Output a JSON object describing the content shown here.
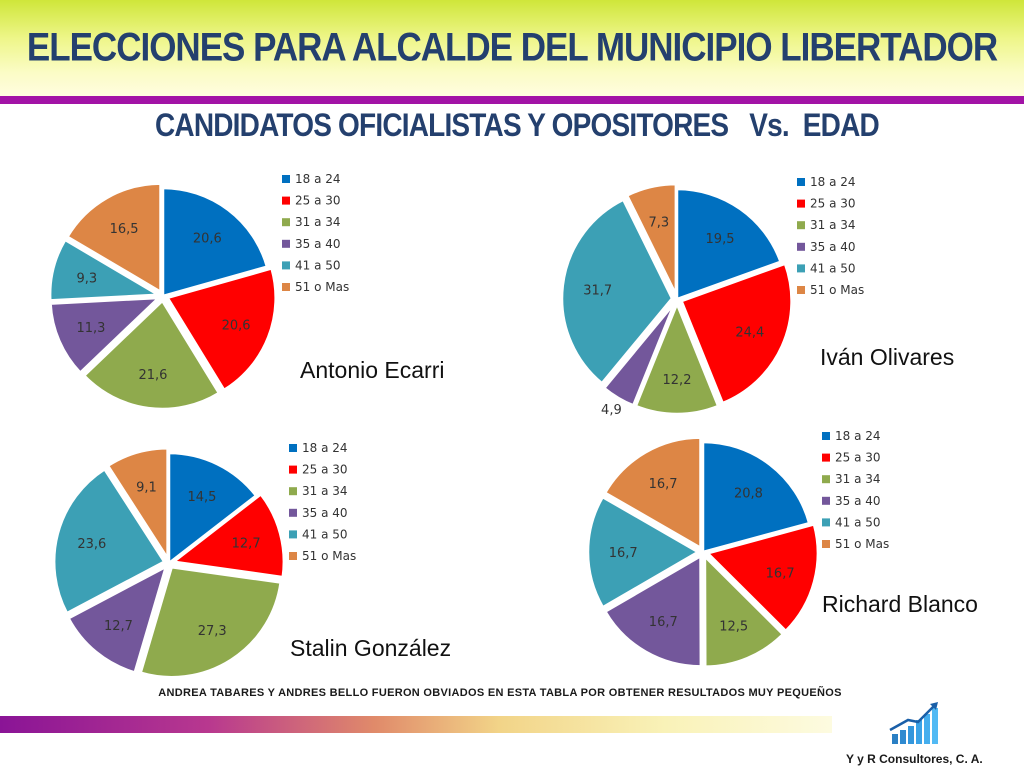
{
  "title": "ELECCIONES PARA ALCALDE DEL MUNICIPIO LIBERTADOR",
  "subtitle": "CANDIDATOS OFICIALISTAS Y OPOSITORES   Vs.  EDAD",
  "footnote": "ANDREA TABARES Y ANDRES BELLO FUERON OBVIADOS EN ESTA TABLA POR OBTENER RESULTADOS MUY PEQUEÑOS",
  "company": "Y y R Consultores, C. A.",
  "colors": [
    "#0070c0",
    "#ff0000",
    "#8faa4d",
    "#73579b",
    "#3ca0b5",
    "#dd8645"
  ],
  "chart_data": [
    {
      "type": "pie",
      "title": "Antonio Ecarri",
      "categories": [
        "18 a 24",
        "25 a 30",
        "31 a 34",
        "35 a 40",
        "41 a 50",
        "51 o Mas"
      ],
      "values": [
        20.6,
        20.6,
        21.6,
        11.3,
        9.3,
        16.5
      ],
      "labels": [
        "20,6",
        "20,6",
        "21,6",
        "11,3",
        "9,3",
        "16,5"
      ],
      "legend": "top-right"
    },
    {
      "type": "pie",
      "title": "Iván Olivares",
      "categories": [
        "18 a 24",
        "25 a 30",
        "31 a 34",
        "35 a 40",
        "41 a 50",
        "51 o Mas"
      ],
      "values": [
        19.5,
        24.4,
        12.2,
        4.9,
        31.7,
        7.3
      ],
      "labels": [
        "19,5",
        "24,4",
        "12,2",
        "4,9",
        "31,7",
        "7,3"
      ],
      "legend": "top-right"
    },
    {
      "type": "pie",
      "title": "Stalin González",
      "categories": [
        "18 a 24",
        "25 a 30",
        "31 a 34",
        "35 a 40",
        "41 a 50",
        "51 o Mas"
      ],
      "values": [
        14.5,
        12.7,
        27.3,
        12.7,
        23.6,
        9.1
      ],
      "labels": [
        "14,5",
        "12,7",
        "27,3",
        "12,7",
        "23,6",
        "9,1"
      ],
      "legend": "top-right"
    },
    {
      "type": "pie",
      "title": "Richard Blanco",
      "categories": [
        "18 a 24",
        "25 a 30",
        "31 a 34",
        "35 a 40",
        "41 a 50",
        "51 o Mas"
      ],
      "values": [
        20.8,
        16.7,
        12.5,
        16.7,
        16.7,
        16.7
      ],
      "labels": [
        "20,8",
        "16,7",
        "12,5",
        "16,7",
        "16,7",
        "16,7"
      ],
      "legend": "top-right"
    }
  ]
}
